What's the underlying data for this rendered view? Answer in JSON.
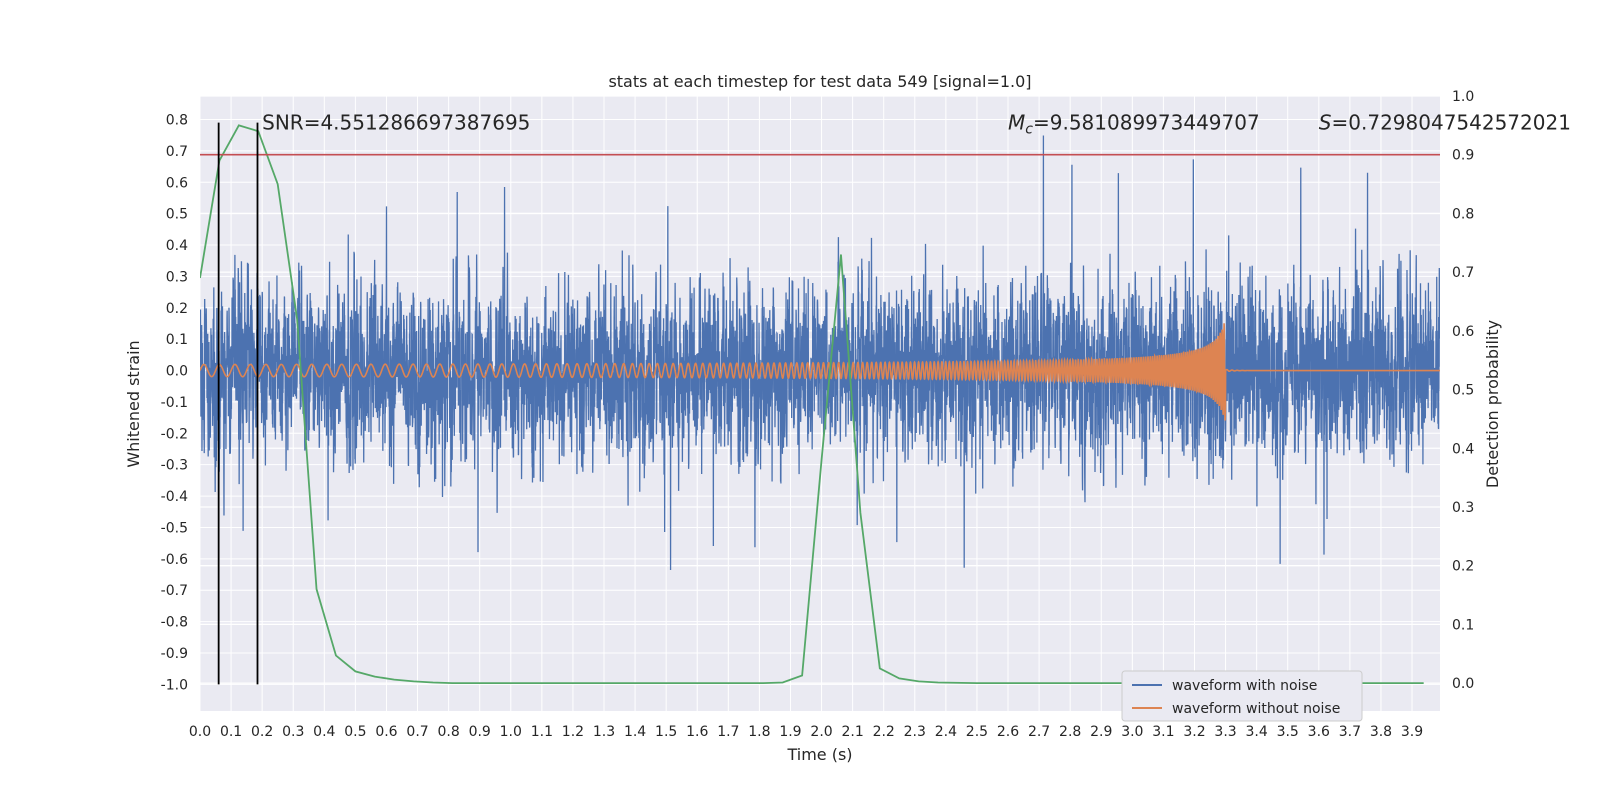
{
  "chart_data": {
    "type": "line",
    "title": "stats at each timestep for test data 549 [signal=1.0]",
    "xlabel": "Time (s)",
    "ylabel": "Whitened strain",
    "y2label": "Detection probability",
    "xlim": [
      0.0,
      3.99
    ],
    "ylim": [
      -1.085,
      0.875
    ],
    "y2lim": [
      -0.0475,
      1.0
    ],
    "xticks": [
      "0.0",
      "0.1",
      "0.2",
      "0.3",
      "0.4",
      "0.5",
      "0.6",
      "0.7",
      "0.8",
      "0.9",
      "1.0",
      "1.1",
      "1.2",
      "1.3",
      "1.4",
      "1.5",
      "1.6",
      "1.7",
      "1.8",
      "1.9",
      "2.0",
      "2.1",
      "2.2",
      "2.3",
      "2.4",
      "2.5",
      "2.6",
      "2.7",
      "2.8",
      "2.9",
      "3.0",
      "3.1",
      "3.2",
      "3.3",
      "3.4",
      "3.5",
      "3.6",
      "3.7",
      "3.8",
      "3.9"
    ],
    "yticks": [
      "0.8",
      "0.7",
      "0.6",
      "0.5",
      "0.4",
      "0.3",
      "0.2",
      "0.1",
      "0.0",
      "-0.1",
      "-0.2",
      "-0.3",
      "-0.4",
      "-0.5",
      "-0.6",
      "-0.7",
      "-0.8",
      "-0.9",
      "-1.0"
    ],
    "y2ticks": [
      "1.0",
      "0.9",
      "0.8",
      "0.7",
      "0.6",
      "0.5",
      "0.4",
      "0.3",
      "0.2",
      "0.1",
      "0.0"
    ],
    "grid": true,
    "legend_position": "bottom-right",
    "series": [
      {
        "name": "waveform with noise",
        "color": "#4c72b0",
        "axis": "left",
        "kind": "noise",
        "sigma": 0.17,
        "sample_rate": 2048
      },
      {
        "name": "waveform without noise",
        "color": "#dd8452",
        "axis": "left",
        "kind": "chirp",
        "amplitude_start": 0.012,
        "amplitude_peak": 0.17,
        "merger_time": 3.3,
        "freq_start": 20,
        "freq_end": 60
      },
      {
        "color": "#55a868",
        "axis": "right",
        "x": [
          0.0,
          0.0625,
          0.125,
          0.1875,
          0.25,
          0.3125,
          0.375,
          0.4375,
          0.5,
          0.5625,
          0.625,
          0.6875,
          0.75,
          0.8125,
          0.875,
          1.0,
          1.25,
          1.5,
          1.75,
          1.8125,
          1.875,
          1.9375,
          2.0,
          2.0625,
          2.125,
          2.1875,
          2.25,
          2.3125,
          2.375,
          2.5,
          3.0,
          3.5,
          3.9375
        ],
        "y": [
          0.69,
          0.89,
          0.95,
          0.94,
          0.85,
          0.62,
          0.16,
          0.047,
          0.02,
          0.011,
          0.006,
          0.003,
          0.001,
          0.0,
          0.0,
          0.0,
          0.0,
          0.0,
          0.0,
          0.0,
          0.001,
          0.013,
          0.38,
          0.73,
          0.29,
          0.025,
          0.008,
          0.003,
          0.001,
          0.0,
          0.0,
          0.0,
          0.0
        ]
      },
      {
        "color": "#c44e52",
        "axis": "right",
        "kind": "hline",
        "y": 0.9
      }
    ],
    "vlines": [
      {
        "x": 0.06,
        "color": "#000000",
        "y": [
          -1.0,
          0.79
        ]
      },
      {
        "x": 0.185,
        "color": "#000000",
        "y": [
          -1.0,
          0.79
        ]
      }
    ],
    "annotations": [
      {
        "text": "SNR=4.551286697387695",
        "x": 0.2,
        "y": 0.79
      },
      {
        "text": "Mc=9.581089973449707",
        "sub": "c",
        "main": "M",
        "rest": "=9.581089973449707",
        "x": 2.6,
        "y": 0.79
      },
      {
        "text": "S=0.7298047542572021",
        "main": "S",
        "rest": "=0.7298047542572021",
        "x": 3.6,
        "y": 0.79
      }
    ]
  }
}
